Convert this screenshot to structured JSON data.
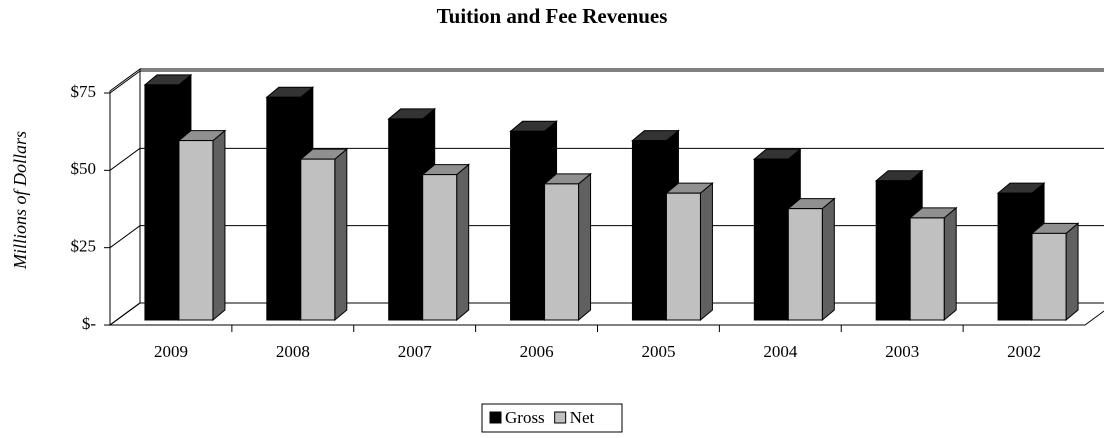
{
  "chart_data": {
    "type": "bar3d",
    "title": "Tuition and Fee Revenues",
    "y_label": "Millions of Dollars",
    "categories": [
      "2009",
      "2008",
      "2007",
      "2006",
      "2005",
      "2004",
      "2003",
      "2002"
    ],
    "series": [
      {
        "name": "Gross",
        "color": "#000000",
        "values": [
          76,
          72,
          65,
          61,
          58,
          52,
          45,
          41
        ]
      },
      {
        "name": "Net",
        "color": "#c0c0c0",
        "values": [
          58,
          52,
          47,
          44,
          41,
          36,
          33,
          28
        ]
      }
    ],
    "ylim": [
      0,
      75
    ],
    "yticks": [
      {
        "value": 0,
        "label": "$-"
      },
      {
        "value": 25,
        "label": "$25"
      },
      {
        "value": 50,
        "label": "$50"
      },
      {
        "value": 75,
        "label": "$75"
      }
    ],
    "grid": true,
    "legend": "bottom"
  }
}
